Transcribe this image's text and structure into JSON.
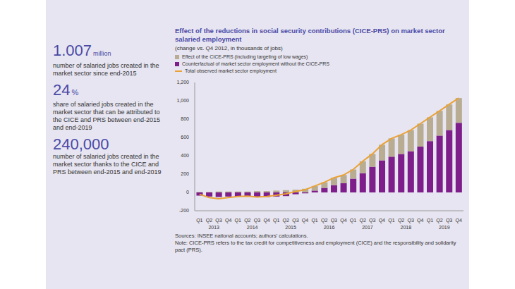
{
  "chart_data": {
    "type": "bar",
    "title": "Effect of the reductions in social security contributions (CICE-PRS) on market sector salaried employment",
    "subtitle": "(change vs. Q4 2012, in thousands of jobs)",
    "categories": [
      "Q1",
      "Q2",
      "Q3",
      "Q4",
      "Q1",
      "Q2",
      "Q3",
      "Q4",
      "Q1",
      "Q2",
      "Q3",
      "Q4",
      "Q1",
      "Q2",
      "Q3",
      "Q4",
      "Q1",
      "Q2",
      "Q3",
      "Q4",
      "Q1",
      "Q2",
      "Q3",
      "Q4",
      "Q1",
      "Q2",
      "Q3",
      "Q4"
    ],
    "x_group_labels": [
      "2013",
      "2014",
      "2015",
      "2016",
      "2017",
      "2018",
      "2019"
    ],
    "series": [
      {
        "name": "Effect of the CICE-PRS (including targeting of low wages)",
        "type": "bar",
        "color": "#b8ad93",
        "values": [
          5,
          5,
          10,
          10,
          10,
          10,
          15,
          15,
          20,
          25,
          30,
          40,
          50,
          60,
          80,
          90,
          100,
          130,
          140,
          170,
          200,
          210,
          230,
          250,
          260,
          270,
          280,
          270
        ]
      },
      {
        "name": "Counterfactual of market sector employment without the CICE-PRS",
        "type": "bar",
        "color": "#7d1e8a",
        "values": [
          -35,
          -45,
          -50,
          -45,
          -45,
          -40,
          -50,
          -50,
          -45,
          -40,
          -20,
          -10,
          20,
          50,
          80,
          100,
          150,
          210,
          280,
          350,
          390,
          420,
          450,
          500,
          560,
          620,
          680,
          760
        ]
      },
      {
        "name": "Total observed market sector employment",
        "type": "line",
        "color": "#eaa236",
        "values": [
          -20,
          -55,
          -70,
          -55,
          -45,
          -40,
          -50,
          -45,
          -30,
          -15,
          10,
          30,
          70,
          110,
          160,
          190,
          250,
          340,
          420,
          520,
          590,
          630,
          680,
          750,
          820,
          890,
          960,
          1030
        ]
      }
    ],
    "ylim": [
      -200,
      1200
    ],
    "yticks": [
      -200,
      0,
      200,
      400,
      600,
      800,
      {
        "value": 1000,
        "label": "1,000"
      },
      {
        "value": 1200,
        "label": "1,200"
      }
    ],
    "stacked": true,
    "grid": false,
    "legend": "top left",
    "sources": "Sources: INSEE national accounts; authors' calculations.",
    "note": "Note: CICE-PRS refers to the tax credit for competitiveness and employment (CICE) and the responsibility and solidarity pact (PRS)."
  },
  "key_figures": [
    {
      "value": "1.007",
      "unit": "million",
      "text": "number of salaried jobs created in the market sector since end-2015"
    },
    {
      "value": "24",
      "unit": "%",
      "text": "share of salaried jobs created in the market sector that can be attributed to the CICE and PRS between end-2015 and end-2019"
    },
    {
      "value": "240,000",
      "unit": null,
      "text": "number of salaried jobs created in the market sector thanks to the CICE and PRS between end-2015 and end-2019"
    }
  ]
}
